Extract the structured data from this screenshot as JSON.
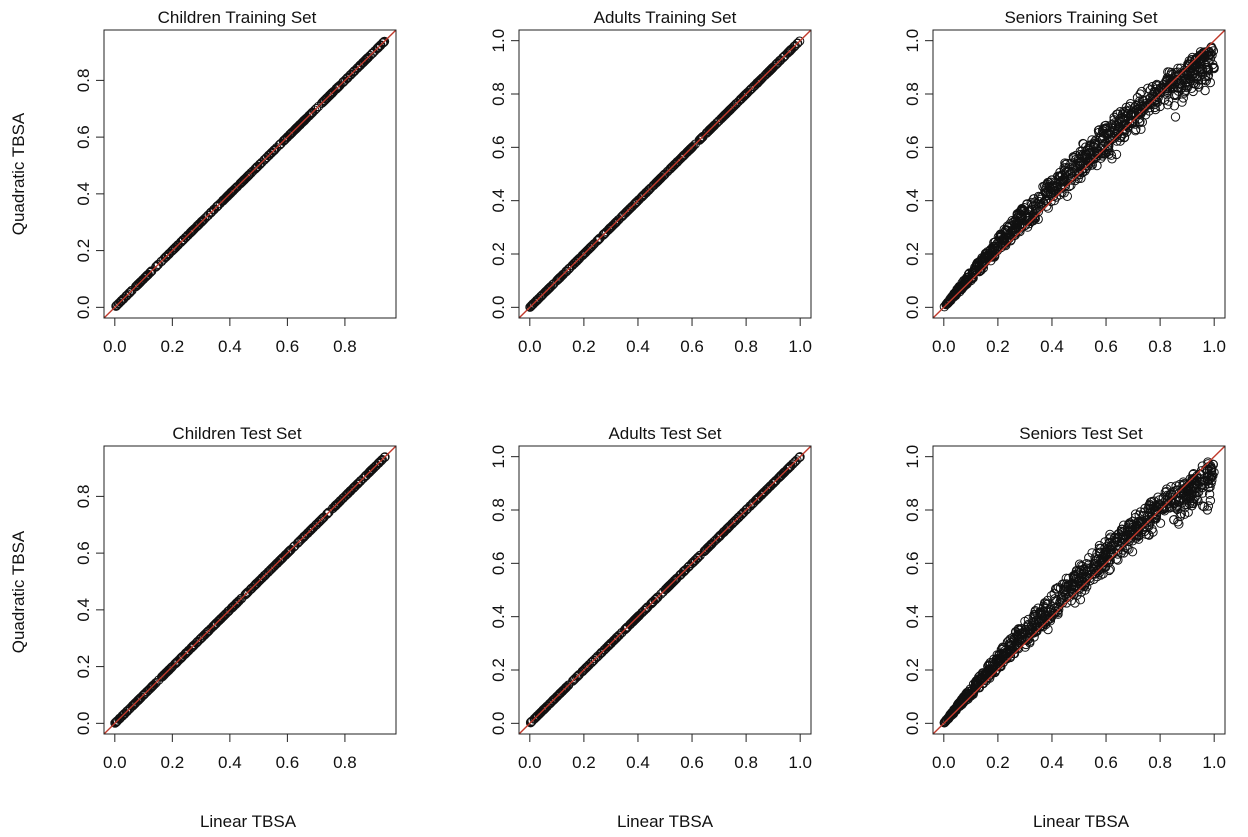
{
  "figure": {
    "shared_ylabel": "Quadratic TBSA",
    "shared_xlabel": "Linear TBSA"
  },
  "chart_data": [
    {
      "type": "scatter",
      "title": "Children Training Set",
      "xlabel": "",
      "ylabel": "Quadratic TBSA",
      "xlim": [
        0,
        0.94
      ],
      "ylim": [
        0,
        0.94
      ],
      "xticks": [
        "0.0",
        "0.2",
        "0.4",
        "0.6",
        "0.8"
      ],
      "yticks": [
        "0.0",
        "0.2",
        "0.4",
        "0.6",
        "0.8"
      ],
      "reference_line": "y = x",
      "reference_color": "#c0392b",
      "marker_color": "#111111",
      "spread": 0.0
    },
    {
      "type": "scatter",
      "title": "Adults Training Set",
      "xlabel": "",
      "ylabel": "",
      "xlim": [
        0,
        1.0
      ],
      "ylim": [
        0,
        1.0
      ],
      "xticks": [
        "0.0",
        "0.2",
        "0.4",
        "0.6",
        "0.8",
        "1.0"
      ],
      "yticks": [
        "0.0",
        "0.2",
        "0.4",
        "0.6",
        "0.8",
        "1.0"
      ],
      "reference_line": "y = x",
      "reference_color": "#c0392b",
      "marker_color": "#111111",
      "spread": 0.0
    },
    {
      "type": "scatter",
      "title": "Seniors Training Set",
      "xlabel": "",
      "ylabel": "",
      "xlim": [
        0,
        1.0
      ],
      "ylim": [
        0,
        1.0
      ],
      "xticks": [
        "0.0",
        "0.2",
        "0.4",
        "0.6",
        "0.8",
        "1.0"
      ],
      "yticks": [
        "0.0",
        "0.2",
        "0.4",
        "0.6",
        "0.8",
        "1.0"
      ],
      "reference_line": "y = x",
      "reference_color": "#c0392b",
      "marker_color": "#111111",
      "spread": 1.0
    },
    {
      "type": "scatter",
      "title": "Children Test Set",
      "xlabel": "Linear TBSA",
      "ylabel": "Quadratic TBSA",
      "xlim": [
        0,
        0.94
      ],
      "ylim": [
        0,
        0.94
      ],
      "xticks": [
        "0.0",
        "0.2",
        "0.4",
        "0.6",
        "0.8"
      ],
      "yticks": [
        "0.0",
        "0.2",
        "0.4",
        "0.6",
        "0.8"
      ],
      "reference_line": "y = x",
      "reference_color": "#c0392b",
      "marker_color": "#111111",
      "spread": 0.0
    },
    {
      "type": "scatter",
      "title": "Adults Test Set",
      "xlabel": "Linear TBSA",
      "ylabel": "",
      "xlim": [
        0,
        1.0
      ],
      "ylim": [
        0,
        1.0
      ],
      "xticks": [
        "0.0",
        "0.2",
        "0.4",
        "0.6",
        "0.8",
        "1.0"
      ],
      "yticks": [
        "0.0",
        "0.2",
        "0.4",
        "0.6",
        "0.8",
        "1.0"
      ],
      "reference_line": "y = x",
      "reference_color": "#c0392b",
      "marker_color": "#111111",
      "spread": 0.0
    },
    {
      "type": "scatter",
      "title": "Seniors Test Set",
      "xlabel": "Linear TBSA",
      "ylabel": "",
      "xlim": [
        0,
        1.0
      ],
      "ylim": [
        0,
        1.0
      ],
      "xticks": [
        "0.0",
        "0.2",
        "0.4",
        "0.6",
        "0.8",
        "1.0"
      ],
      "yticks": [
        "0.0",
        "0.2",
        "0.4",
        "0.6",
        "0.8",
        "1.0"
      ],
      "reference_line": "y = x",
      "reference_color": "#c0392b",
      "marker_color": "#111111",
      "spread": 1.0
    }
  ]
}
